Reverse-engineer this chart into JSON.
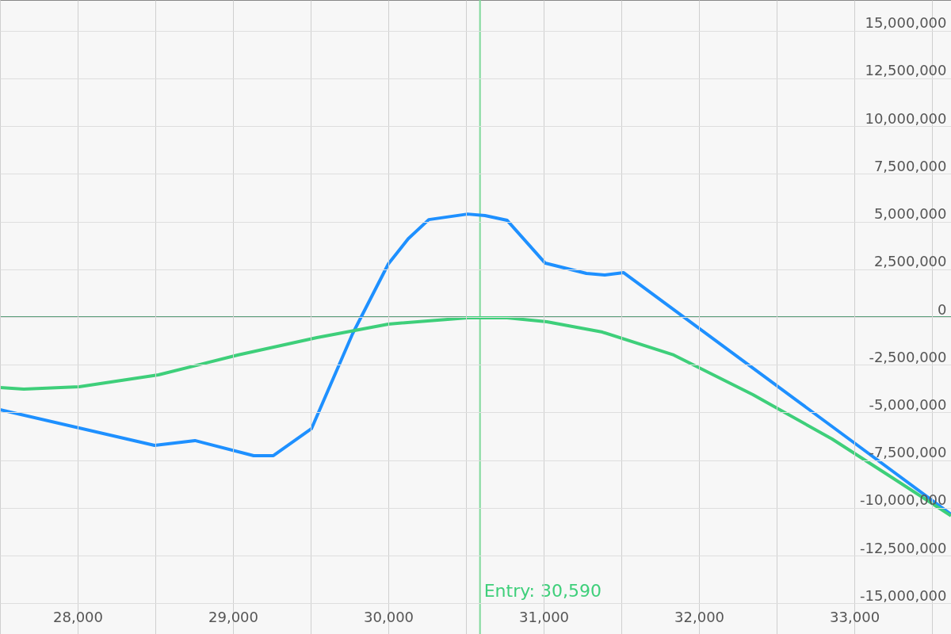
{
  "chart_data": {
    "type": "line",
    "xlim": [
      27500,
      33622
    ],
    "ylim": [
      -16600000,
      16600000
    ],
    "xticks": [
      {
        "value": 27500,
        "label": null
      },
      {
        "value": 28000,
        "label": "28,000"
      },
      {
        "value": 28500,
        "label": null
      },
      {
        "value": 29000,
        "label": "29,000"
      },
      {
        "value": 29500,
        "label": null
      },
      {
        "value": 30000,
        "label": "30,000"
      },
      {
        "value": 30500,
        "label": null
      },
      {
        "value": 31000,
        "label": "31,000"
      },
      {
        "value": 31500,
        "label": null
      },
      {
        "value": 32000,
        "label": "32,000"
      },
      {
        "value": 32500,
        "label": null
      },
      {
        "value": 33000,
        "label": "33,000"
      },
      {
        "value": 33500,
        "label": null
      }
    ],
    "yticks": [
      {
        "value": -15000000,
        "label": "-15,000,000"
      },
      {
        "value": -12500000,
        "label": "-12,500,000"
      },
      {
        "value": -10000000,
        "label": "-10,000,000"
      },
      {
        "value": -7500000,
        "label": "-7,500,000"
      },
      {
        "value": -5000000,
        "label": "-5,000,000"
      },
      {
        "value": -2500000,
        "label": "-2,500,000"
      },
      0,
      {
        "value": 2500000,
        "label": "2,500,000"
      },
      {
        "value": 5000000,
        "label": "5,000,000"
      },
      {
        "value": 7500000,
        "label": "7,500,000"
      },
      {
        "value": 10000000,
        "label": "10,000,000"
      },
      {
        "value": 12500000,
        "label": "12,500,000"
      },
      {
        "value": 15000000,
        "label": "15,000,000"
      }
    ],
    "grid": true,
    "line_style": "solid",
    "marker": "none",
    "series": [
      {
        "color": "#1e90ff",
        "x": [
          27500,
          28495,
          28755,
          29133,
          29260,
          29505,
          29770,
          30000,
          30128,
          30260,
          30510,
          30622,
          30765,
          31010,
          31275,
          31393,
          31515,
          33622
        ],
        "values": [
          -4850000,
          -6720000,
          -6470000,
          -7260000,
          -7260000,
          -5850000,
          -870000,
          2780000,
          4100000,
          5100000,
          5390000,
          5310000,
          5060000,
          2820000,
          2280000,
          2200000,
          2320000,
          -10330000
        ]
      },
      {
        "color": "#3ecf7a",
        "x": [
          27500,
          27653,
          28010,
          28520,
          29030,
          29540,
          30000,
          30510,
          30765,
          31020,
          31378,
          31837,
          32347,
          32857,
          33214,
          33622
        ],
        "values": [
          -3690000,
          -3780000,
          -3650000,
          -3030000,
          -1990000,
          -1080000,
          -370000,
          -40000,
          -40000,
          -250000,
          -790000,
          -1990000,
          -4070000,
          -6390000,
          -8260000,
          -10410000
        ]
      }
    ],
    "ref_lines": [
      {
        "axis": "x",
        "value": 30590,
        "label": "Entry: 30,590",
        "color": "#7fd89a"
      },
      {
        "axis": "y",
        "value": 0,
        "label": null,
        "color": "#5a9e7a"
      }
    ]
  }
}
